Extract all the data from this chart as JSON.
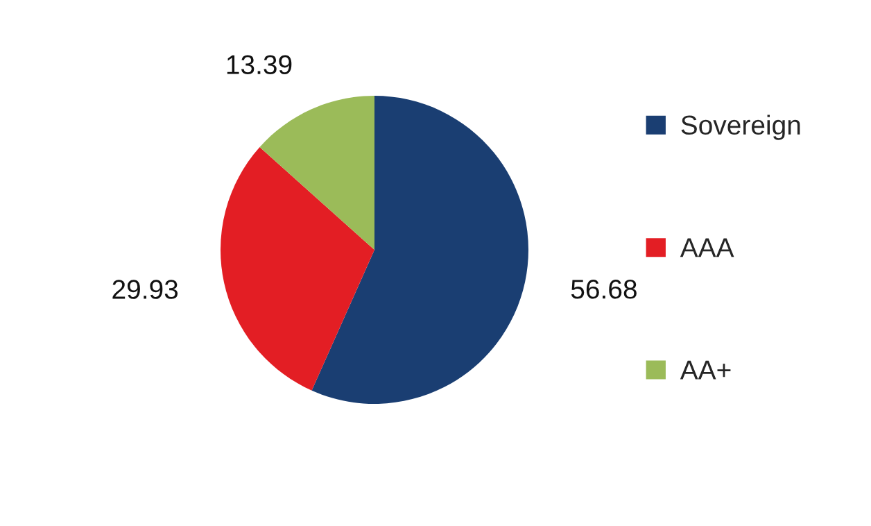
{
  "chart_data": {
    "type": "pie",
    "categories": [
      "Sovereign",
      "AAA",
      "AA+"
    ],
    "values": [
      56.68,
      29.93,
      13.39
    ],
    "colors": [
      "#1a3e72",
      "#e31e24",
      "#9bbb59"
    ],
    "data_labels": true,
    "legend": "right"
  }
}
